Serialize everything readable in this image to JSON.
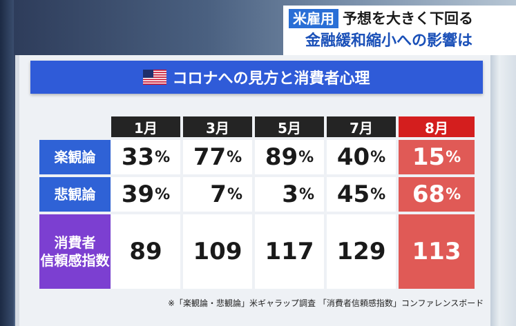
{
  "headline": {
    "tag": "米雇用",
    "line1": "予想を大きく下回る",
    "line2": "金融緩和縮小への影響は"
  },
  "board": {
    "title": "コロナへの見方と消費者心理",
    "flag_icon": "us-flag-icon",
    "months": [
      "1月",
      "3月",
      "5月",
      "7月",
      "8月"
    ],
    "rows": [
      {
        "label": "楽観論",
        "values": [
          "33",
          "77",
          "89",
          "40",
          "15"
        ],
        "unit": "%"
      },
      {
        "label": "悲観論",
        "values": [
          "39",
          "7",
          "3",
          "45",
          "68"
        ],
        "unit": "%"
      }
    ],
    "index_row": {
      "label_line1": "消費者",
      "label_line2": "信頼感指数",
      "values": [
        "89",
        "109",
        "117",
        "129",
        "113"
      ]
    },
    "footnote": "※「楽観論・悲観論」米ギャラップ調査 「消費者信頼感指数」コンファレンスボード",
    "colors": {
      "title_bar": "#2f5bd8",
      "row_label": "#2f62d6",
      "index_label": "#7c3fd1",
      "month_head": "#242424",
      "highlight_head": "#d41e1e",
      "highlight_cell": "#e05a56"
    }
  }
}
